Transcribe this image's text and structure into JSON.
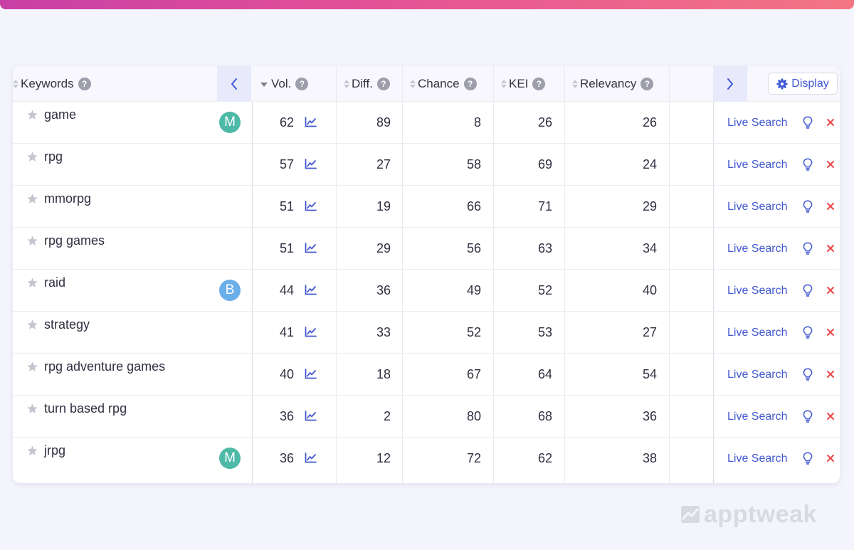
{
  "brand": {
    "watermark": "apptweak"
  },
  "colors": {
    "accent": "#3f56d4",
    "badge_m": "#4fb9a8",
    "badge_b": "#6aaeea",
    "delete": "#e84a4a",
    "gradient_start": "#c83fa6",
    "gradient_end": "#f47683"
  },
  "header": {
    "keywords": "Keywords",
    "vol": "Vol.",
    "diff": "Diff.",
    "chance": "Chance",
    "kei": "KEI",
    "relevancy": "Relevancy",
    "help_glyph": "?",
    "display": "Display"
  },
  "actions": {
    "live_search": "Live Search",
    "delete_glyph": "×"
  },
  "rows": [
    {
      "keyword": "game",
      "badge": "M",
      "vol": "62",
      "diff": "89",
      "chance": "8",
      "kei": "26",
      "relevancy": "26"
    },
    {
      "keyword": "rpg",
      "badge": "",
      "vol": "57",
      "diff": "27",
      "chance": "58",
      "kei": "69",
      "relevancy": "24"
    },
    {
      "keyword": "mmorpg",
      "badge": "",
      "vol": "51",
      "diff": "19",
      "chance": "66",
      "kei": "71",
      "relevancy": "29"
    },
    {
      "keyword": "rpg games",
      "badge": "",
      "vol": "51",
      "diff": "29",
      "chance": "56",
      "kei": "63",
      "relevancy": "34"
    },
    {
      "keyword": "raid",
      "badge": "B",
      "vol": "44",
      "diff": "36",
      "chance": "49",
      "kei": "52",
      "relevancy": "40"
    },
    {
      "keyword": "strategy",
      "badge": "",
      "vol": "41",
      "diff": "33",
      "chance": "52",
      "kei": "53",
      "relevancy": "27"
    },
    {
      "keyword": "rpg adventure games",
      "badge": "",
      "vol": "40",
      "diff": "18",
      "chance": "67",
      "kei": "64",
      "relevancy": "54"
    },
    {
      "keyword": "turn based rpg",
      "badge": "",
      "vol": "36",
      "diff": "2",
      "chance": "80",
      "kei": "68",
      "relevancy": "36"
    },
    {
      "keyword": "jrpg",
      "badge": "M",
      "vol": "36",
      "diff": "12",
      "chance": "72",
      "kei": "62",
      "relevancy": "38"
    }
  ]
}
